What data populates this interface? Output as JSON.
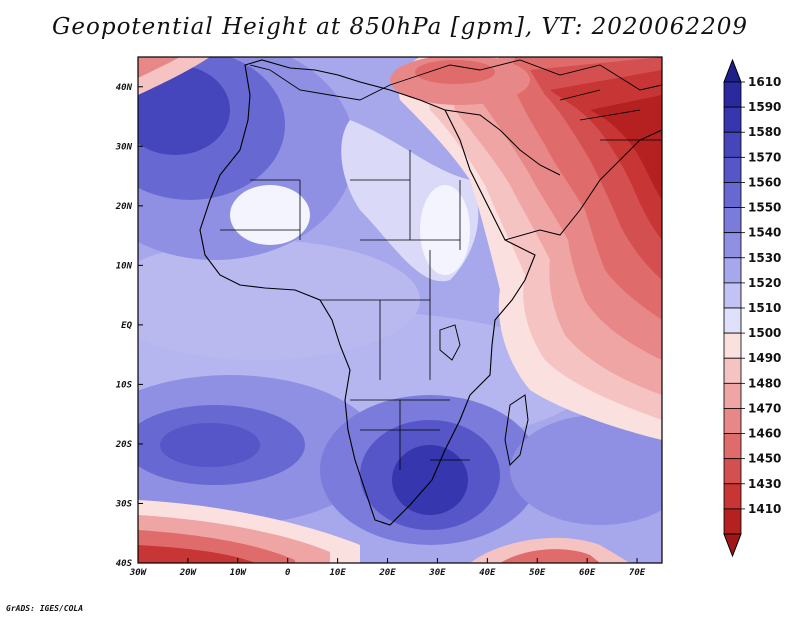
{
  "title": "Geopotential Height at 850hPa [gpm], VT: 2020062209",
  "credit": "GrADS: IGES/COLA",
  "map": {
    "variable": "Geopotential Height",
    "level": "850hPa",
    "units": "gpm",
    "valid_time": "2020062209",
    "lon_range": [
      -30,
      75
    ],
    "lat_range": [
      -40,
      45
    ],
    "lat_labels": [
      "40N",
      "30N",
      "20N",
      "10N",
      "EQ",
      "10S",
      "20S",
      "30S",
      "40S"
    ],
    "lat_values": [
      40,
      30,
      20,
      10,
      0,
      -10,
      -20,
      -30,
      -40
    ],
    "lon_labels": [
      "30W",
      "20W",
      "10W",
      "0",
      "10E",
      "20E",
      "30E",
      "40E",
      "50E",
      "60E",
      "70E"
    ],
    "lon_values": [
      -30,
      -20,
      -10,
      0,
      10,
      20,
      30,
      40,
      50,
      60,
      70
    ]
  },
  "colorbar": {
    "levels": [
      "1610",
      "1590",
      "1580",
      "1570",
      "1560",
      "1550",
      "1540",
      "1530",
      "1520",
      "1510",
      "1500",
      "1490",
      "1480",
      "1470",
      "1460",
      "1450",
      "1430",
      "1410"
    ],
    "colors": [
      "#2a2a9e",
      "#3636ae",
      "#4646bc",
      "#5656c8",
      "#6868d2",
      "#7b7bdb",
      "#8f8fe3",
      "#a7a7ec",
      "#c2c2f4",
      "#e0e0fa",
      "#fbe0e0",
      "#f6c3c3",
      "#f0a5a5",
      "#e88787",
      "#df6b6b",
      "#d45050",
      "#c73535",
      "#b52020"
    ],
    "top_arrow_color": "#1f1f8c",
    "bottom_arrow_color": "#a01616"
  },
  "colors": {
    "low": "#b52020",
    "high": "#2a2a9e",
    "mid": "#f4f4ff"
  }
}
